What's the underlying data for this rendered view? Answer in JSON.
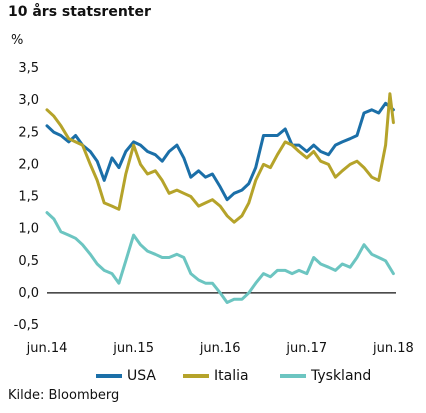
{
  "title": "10 års statsrenter",
  "unit": "%",
  "source": "Kilde: Bloomberg",
  "chart_data": {
    "type": "line",
    "title": "10 års statsrenter",
    "ylabel": "%",
    "xlabel": "",
    "ylim": [
      -0.5,
      3.5
    ],
    "yticks": [
      -0.5,
      0.0,
      0.5,
      1.0,
      1.5,
      2.0,
      2.5,
      3.0,
      3.5
    ],
    "ytick_labels": [
      "-0,5",
      "0,0",
      "0,5",
      "1,0",
      "1,5",
      "2,0",
      "2,5",
      "3,0",
      "3,5"
    ],
    "xlim": [
      2014.42,
      2018.45
    ],
    "xticks": [
      2014.42,
      2015.42,
      2016.42,
      2017.42,
      2018.42
    ],
    "xtick_labels": [
      "jun.14",
      "jun.15",
      "jun.16",
      "jun.17",
      "jun.18"
    ],
    "grid": false,
    "legend_position": "bottom",
    "series": [
      {
        "name": "USA",
        "color": "#1b6fa8",
        "x": [
          2014.42,
          2014.5,
          2014.58,
          2014.67,
          2014.75,
          2014.83,
          2014.92,
          2015.0,
          2015.08,
          2015.17,
          2015.25,
          2015.33,
          2015.42,
          2015.5,
          2015.58,
          2015.67,
          2015.75,
          2015.83,
          2015.92,
          2016.0,
          2016.08,
          2016.17,
          2016.25,
          2016.33,
          2016.42,
          2016.5,
          2016.58,
          2016.67,
          2016.75,
          2016.83,
          2016.92,
          2017.0,
          2017.08,
          2017.17,
          2017.25,
          2017.33,
          2017.42,
          2017.5,
          2017.58,
          2017.67,
          2017.75,
          2017.83,
          2017.92,
          2018.0,
          2018.08,
          2018.17,
          2018.25,
          2018.33,
          2018.42
        ],
        "values": [
          2.6,
          2.5,
          2.45,
          2.35,
          2.45,
          2.3,
          2.2,
          2.05,
          1.75,
          2.1,
          1.95,
          2.2,
          2.35,
          2.3,
          2.2,
          2.15,
          2.05,
          2.2,
          2.3,
          2.1,
          1.8,
          1.9,
          1.8,
          1.85,
          1.65,
          1.45,
          1.55,
          1.6,
          1.7,
          1.95,
          2.45,
          2.45,
          2.45,
          2.55,
          2.3,
          2.3,
          2.2,
          2.3,
          2.2,
          2.15,
          2.3,
          2.35,
          2.4,
          2.45,
          2.8,
          2.85,
          2.8,
          2.95,
          2.85
        ]
      },
      {
        "name": "Italia",
        "color": "#b5a32a",
        "x": [
          2014.42,
          2014.5,
          2014.58,
          2014.67,
          2014.75,
          2014.83,
          2014.92,
          2015.0,
          2015.08,
          2015.17,
          2015.25,
          2015.33,
          2015.42,
          2015.5,
          2015.58,
          2015.67,
          2015.75,
          2015.83,
          2015.92,
          2016.0,
          2016.08,
          2016.17,
          2016.25,
          2016.33,
          2016.42,
          2016.5,
          2016.58,
          2016.67,
          2016.75,
          2016.83,
          2016.92,
          2017.0,
          2017.08,
          2017.17,
          2017.25,
          2017.33,
          2017.42,
          2017.5,
          2017.58,
          2017.67,
          2017.75,
          2017.83,
          2017.92,
          2018.0,
          2018.08,
          2018.17,
          2018.25,
          2018.33,
          2018.38,
          2018.42
        ],
        "values": [
          2.85,
          2.75,
          2.6,
          2.4,
          2.35,
          2.3,
          2.0,
          1.75,
          1.4,
          1.35,
          1.3,
          1.85,
          2.3,
          2.0,
          1.85,
          1.9,
          1.75,
          1.55,
          1.6,
          1.55,
          1.5,
          1.35,
          1.4,
          1.45,
          1.35,
          1.2,
          1.1,
          1.2,
          1.4,
          1.75,
          2.0,
          1.95,
          2.15,
          2.35,
          2.3,
          2.2,
          2.1,
          2.2,
          2.05,
          2.0,
          1.8,
          1.9,
          2.0,
          2.05,
          1.95,
          1.8,
          1.75,
          2.3,
          3.1,
          2.65
        ]
      },
      {
        "name": "Tyskland",
        "color": "#6cc5c1",
        "x": [
          2014.42,
          2014.5,
          2014.58,
          2014.67,
          2014.75,
          2014.83,
          2014.92,
          2015.0,
          2015.08,
          2015.17,
          2015.25,
          2015.33,
          2015.42,
          2015.5,
          2015.58,
          2015.67,
          2015.75,
          2015.83,
          2015.92,
          2016.0,
          2016.08,
          2016.17,
          2016.25,
          2016.33,
          2016.42,
          2016.5,
          2016.58,
          2016.67,
          2016.75,
          2016.83,
          2016.92,
          2017.0,
          2017.08,
          2017.17,
          2017.25,
          2017.33,
          2017.42,
          2017.5,
          2017.58,
          2017.67,
          2017.75,
          2017.83,
          2017.92,
          2018.0,
          2018.08,
          2018.17,
          2018.25,
          2018.33,
          2018.42
        ],
        "values": [
          1.25,
          1.15,
          0.95,
          0.9,
          0.85,
          0.75,
          0.6,
          0.45,
          0.35,
          0.3,
          0.15,
          0.5,
          0.9,
          0.75,
          0.65,
          0.6,
          0.55,
          0.55,
          0.6,
          0.55,
          0.3,
          0.2,
          0.15,
          0.15,
          0.0,
          -0.15,
          -0.1,
          -0.1,
          0.0,
          0.15,
          0.3,
          0.25,
          0.35,
          0.35,
          0.3,
          0.35,
          0.3,
          0.55,
          0.45,
          0.4,
          0.35,
          0.45,
          0.4,
          0.55,
          0.75,
          0.6,
          0.55,
          0.5,
          0.3
        ]
      }
    ]
  }
}
